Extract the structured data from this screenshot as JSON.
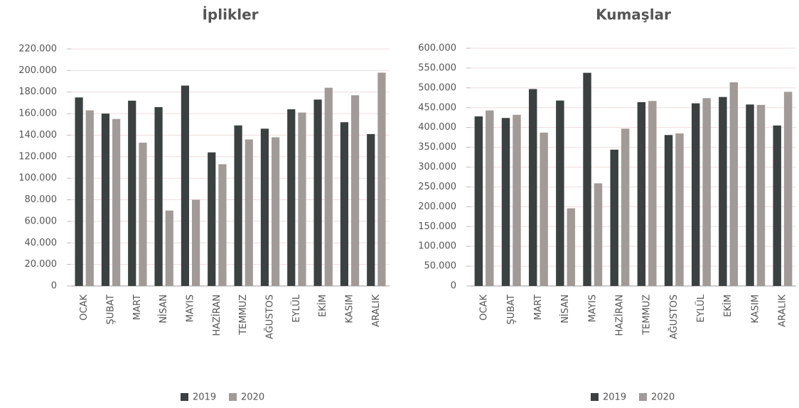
{
  "chart_data": [
    {
      "type": "bar",
      "title": "İplikler",
      "categories": [
        "OCAK",
        "ŞUBAT",
        "MART",
        "NİSAN",
        "MAYIS",
        "HAZİRAN",
        "TEMMUZ",
        "AĞUSTOS",
        "EYLÜL",
        "EKİM",
        "KASIM",
        "ARALIK"
      ],
      "series": [
        {
          "name": "2019",
          "color": "#3b4040",
          "values": [
            175000,
            160000,
            172000,
            166000,
            186000,
            124000,
            149000,
            146000,
            164000,
            173000,
            152000,
            141000
          ]
        },
        {
          "name": "2020",
          "color": "#a29a96",
          "values": [
            163000,
            155000,
            133000,
            70000,
            80000,
            113000,
            136000,
            138000,
            161000,
            184000,
            177000,
            198000
          ]
        }
      ],
      "ylim": [
        0,
        220000
      ],
      "yticks": [
        0,
        {
          "value": 20000,
          "label": "20.000"
        },
        {
          "value": 40000,
          "label": "40.000"
        },
        {
          "value": 60000,
          "label": "60.000"
        },
        {
          "value": 80000,
          "label": "80.000"
        },
        {
          "value": 100000,
          "label": "100.000"
        },
        {
          "value": 120000,
          "label": "120.000"
        },
        {
          "value": 140000,
          "label": "140.000"
        },
        {
          "value": 160000,
          "label": "160.000"
        },
        {
          "value": 180000,
          "label": "180.000"
        },
        {
          "value": 200000,
          "label": "200.000"
        },
        {
          "value": 220000,
          "label": "220.000"
        }
      ],
      "grid": true,
      "legend": "bottom"
    },
    {
      "type": "bar",
      "title": "Kumaşlar",
      "categories": [
        "OCAK",
        "ŞUBAT",
        "MART",
        "NİSAN",
        "MAYIS",
        "HAZİRAN",
        "TEMMUZ",
        "AĞUSTOS",
        "EYLÜL",
        "EKİM",
        "KASIM",
        "ARALIK"
      ],
      "series": [
        {
          "name": "2019",
          "color": "#3b4040",
          "values": [
            428000,
            424000,
            497000,
            468000,
            538000,
            344000,
            464000,
            381000,
            461000,
            477000,
            458000,
            405000
          ]
        },
        {
          "name": "2020",
          "color": "#a29a96",
          "values": [
            443000,
            432000,
            387000,
            196000,
            259000,
            397000,
            467000,
            385000,
            474000,
            514000,
            457000,
            490000
          ]
        }
      ],
      "ylim": [
        0,
        600000
      ],
      "yticks": [
        0,
        {
          "value": 50000,
          "label": "50.000"
        },
        {
          "value": 100000,
          "label": "100.000"
        },
        {
          "value": 150000,
          "label": "150.000"
        },
        {
          "value": 200000,
          "label": "200.000"
        },
        {
          "value": 250000,
          "label": "250.000"
        },
        {
          "value": 300000,
          "label": "300.000"
        },
        {
          "value": 350000,
          "label": "350.000"
        },
        {
          "value": 400000,
          "label": "400.000"
        },
        {
          "value": 450000,
          "label": "450.000"
        },
        {
          "value": 500000,
          "label": "500.000"
        },
        {
          "value": 550000,
          "label": "550.000"
        },
        {
          "value": 600000,
          "label": "600.000"
        }
      ],
      "grid": true,
      "legend": "bottom"
    }
  ]
}
